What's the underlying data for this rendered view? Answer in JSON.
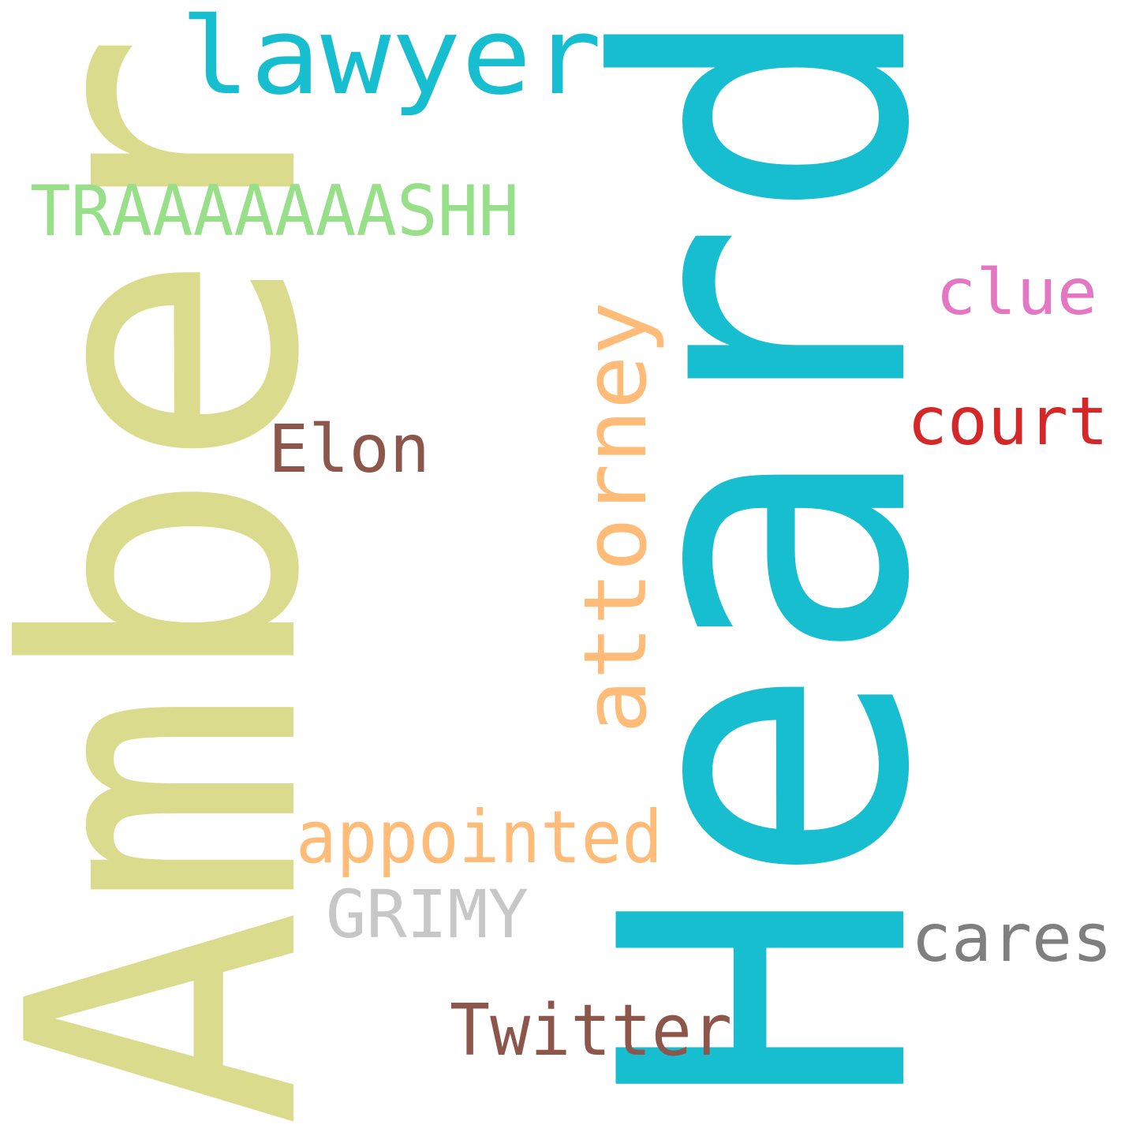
{
  "words": [
    {
      "id": "heard",
      "text": "Heard",
      "color": "#17becf",
      "orientation": "vertical"
    },
    {
      "id": "amber",
      "text": "Amber",
      "color": "#dbdb8d",
      "orientation": "vertical"
    },
    {
      "id": "lawyer",
      "text": "lawyer",
      "color": "#17becf",
      "orientation": "horizontal"
    },
    {
      "id": "traaash",
      "text": "TRAAAAAAASHH",
      "color": "#98df8a",
      "orientation": "horizontal"
    },
    {
      "id": "clue",
      "text": "clue",
      "color": "#e377c2",
      "orientation": "horizontal"
    },
    {
      "id": "court",
      "text": "court",
      "color": "#d62728",
      "orientation": "horizontal"
    },
    {
      "id": "elon",
      "text": "Elon",
      "color": "#8c564b",
      "orientation": "horizontal"
    },
    {
      "id": "attorney",
      "text": "attorney",
      "color": "#ffbb78",
      "orientation": "vertical"
    },
    {
      "id": "appointed",
      "text": "appointed",
      "color": "#ffbb78",
      "orientation": "horizontal"
    },
    {
      "id": "grimy",
      "text": "GRIMY",
      "color": "#c7c7c7",
      "orientation": "horizontal"
    },
    {
      "id": "cares",
      "text": "cares",
      "color": "#7f7f7f",
      "orientation": "horizontal"
    },
    {
      "id": "twitter",
      "text": "Twitter",
      "color": "#8c564b",
      "orientation": "horizontal"
    }
  ]
}
